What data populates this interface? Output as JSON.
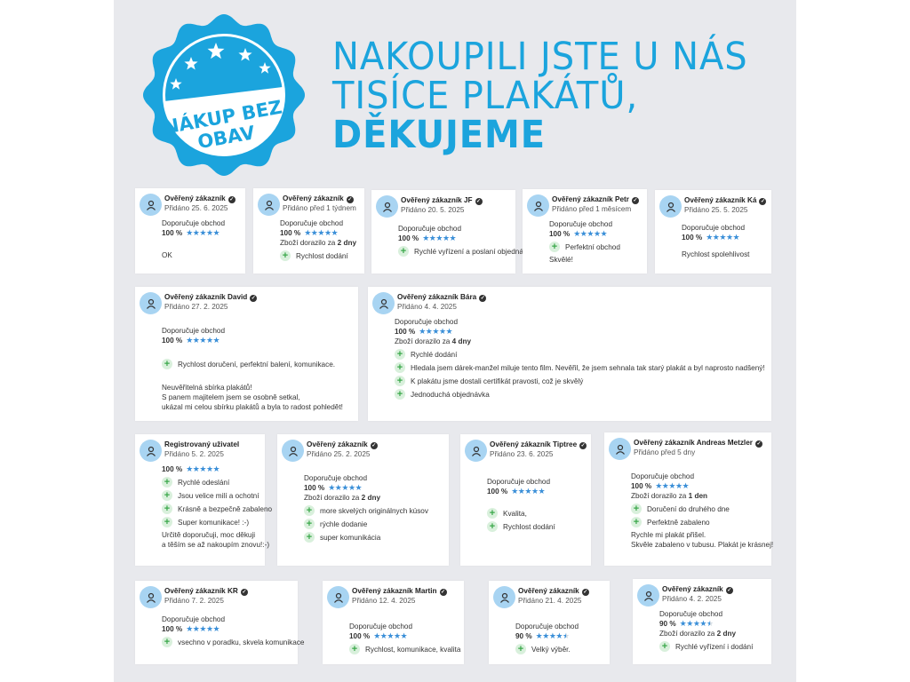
{
  "badge": {
    "text_line1": "NÁKUP BEZ",
    "text_line2": "OBAV",
    "color": "#1ba4dd",
    "stars": 5
  },
  "headline": {
    "line1": "NAKOUPILI JSTE U NÁS",
    "line2": "TISÍCE PLAKÁTŮ,",
    "line3": "DĚKUJEME",
    "color": "#1ba4dd"
  },
  "colors": {
    "star": "#3a8fd8",
    "avatar": "#a8d4f2",
    "plus_bg": "#d9f0dc",
    "plus": "#3aa84a",
    "panel": "#e8e9ed"
  },
  "reviews": [
    {
      "name": "Ověřený zákazník",
      "verified": true,
      "date": "Přidáno 25. 6. 2025",
      "recommend": "Doporučuje obchod",
      "percent": "100 %",
      "rating": 5,
      "pros": [],
      "text": [
        "OK"
      ]
    },
    {
      "name": "Ověřený zákazník",
      "verified": true,
      "date": "Přidáno před 1 týdnem",
      "recommend": "Doporučuje obchod",
      "percent": "100 %",
      "rating": 5,
      "delivery": {
        "prefix": "Zboží dorazilo za ",
        "value": "2 dny"
      },
      "pros": [
        "Rychlost dodání"
      ],
      "text": []
    },
    {
      "name": "Ověřený zákazník JF",
      "verified": true,
      "date": "Přidáno 20. 5. 2025",
      "recommend": "Doporučuje obchod",
      "percent": "100 %",
      "rating": 5,
      "pros": [
        "Rychlé vyřízení a poslaní objednávky"
      ],
      "text": []
    },
    {
      "name": "Ověřený zákazník Petr",
      "verified": true,
      "date": "Přidáno před 1 měsícem",
      "recommend": "Doporučuje obchod",
      "percent": "100 %",
      "rating": 5,
      "pros": [
        "Perfektní obchod"
      ],
      "text": [
        "Skvělé!"
      ]
    },
    {
      "name": "Ověřený zákazník Ká",
      "verified": true,
      "date": "Přidáno 25. 5. 2025",
      "recommend": "Doporučuje obchod",
      "percent": "100 %",
      "rating": 5,
      "pros": [],
      "text": [
        "Rychlost spolehlivost"
      ]
    },
    {
      "name": "Ověřený zákazník David",
      "verified": true,
      "date": "Přidáno 27. 2. 2025",
      "recommend": "Doporučuje obchod",
      "percent": "100 %",
      "rating": 5,
      "pros": [
        "Rychlost doručení, perfektní balení, komunikace."
      ],
      "text": [
        "Neuvěřitelná sbírka plakátů!",
        "S panem majitelem jsem se osobně setkal,",
        "ukázal mi celou sbírku plakátů a byla to radost pohledět!"
      ]
    },
    {
      "name": "Ověřený zákazník Bára",
      "verified": true,
      "date": "Přidáno 4. 4. 2025",
      "recommend": "Doporučuje obchod",
      "percent": "100 %",
      "rating": 5,
      "delivery": {
        "prefix": "Zboží dorazilo za ",
        "value": "4 dny"
      },
      "pros": [
        "Rychlé dodání",
        "Hledala jsem dárek-manžel miluje tento film. Nevěřil, že jsem sehnala tak starý plakát a byl naprosto nadšený!",
        "K plakátu jsme dostali certifikát pravosti, což je skvělý",
        "Jednoduchá objednávka"
      ],
      "text": []
    },
    {
      "name": "Registrovaný uživatel",
      "verified": false,
      "date": "Přidáno 5. 2. 2025",
      "percent": "100 %",
      "rating": 5,
      "pros": [
        "Rychlé odeslání",
        "Jsou velice milí a ochotní",
        "Krásně a bezpečně zabaleno",
        "Super komunikace! :-)"
      ],
      "text": [
        "Určitě doporučuji, moc děkuji",
        "a těším se až nakoupím znovu!:-)"
      ]
    },
    {
      "name": "Ověřený zákazník",
      "verified": true,
      "date": "Přidáno 25. 2. 2025",
      "recommend": "Doporučuje obchod",
      "percent": "100 %",
      "rating": 5,
      "delivery": {
        "prefix": "Zboží dorazilo za ",
        "value": "2 dny"
      },
      "pros": [
        "more skvelých originálnych kúsov",
        "rýchle dodanie",
        "super komunikácia"
      ],
      "text": []
    },
    {
      "name": "Ověřený zákazník Tiptree",
      "verified": true,
      "date": "Přidáno 23. 6. 2025",
      "recommend": "Doporučuje obchod",
      "percent": "100 %",
      "rating": 5,
      "pros": [
        "Kvalita,",
        "Rychlost dodání"
      ],
      "text": []
    },
    {
      "name": "Ověřený zákazník Andreas Metzler",
      "verified": true,
      "date": "Přidáno před 5 dny",
      "recommend": "Doporučuje obchod",
      "percent": "100 %",
      "rating": 5,
      "delivery": {
        "prefix": "Zboží dorazilo za ",
        "value": "1 den"
      },
      "pros": [
        "Doručení do druhého dne",
        "Perfektně zabaleno"
      ],
      "text": [
        "Rychle mi plakát přišel.",
        "Skvěle zabaleno v tubusu. Plakát je krásnej!"
      ]
    },
    {
      "name": "Ověřený zákazník KR",
      "verified": true,
      "date": "Přidáno 7. 2. 2025",
      "recommend": "Doporučuje obchod",
      "percent": "100 %",
      "rating": 5,
      "pros": [
        "vsechno v poradku, skvela komunikace"
      ],
      "text": []
    },
    {
      "name": "Ověřený zákazník Martin",
      "verified": true,
      "date": "Přidáno 12. 4. 2025",
      "recommend": "Doporučuje obchod",
      "percent": "100 %",
      "rating": 5,
      "pros": [
        "Rychlost, komunikace, kvalita"
      ],
      "text": []
    },
    {
      "name": "Ověřený zákazník",
      "verified": true,
      "date": "Přidáno 21. 4. 2025",
      "recommend": "Doporučuje obchod",
      "percent": "90 %",
      "rating": 4.5,
      "pros": [
        "Velký výběr."
      ],
      "text": []
    },
    {
      "name": "Ověřený zákazník",
      "verified": true,
      "date": "Přidáno 4. 2. 2025",
      "recommend": "Doporučuje obchod",
      "percent": "90 %",
      "rating": 4.5,
      "delivery": {
        "prefix": "Zboží dorazilo za ",
        "value": "2 dny"
      },
      "pros": [
        "Rychlé vyřízení i dodání"
      ],
      "text": []
    }
  ]
}
